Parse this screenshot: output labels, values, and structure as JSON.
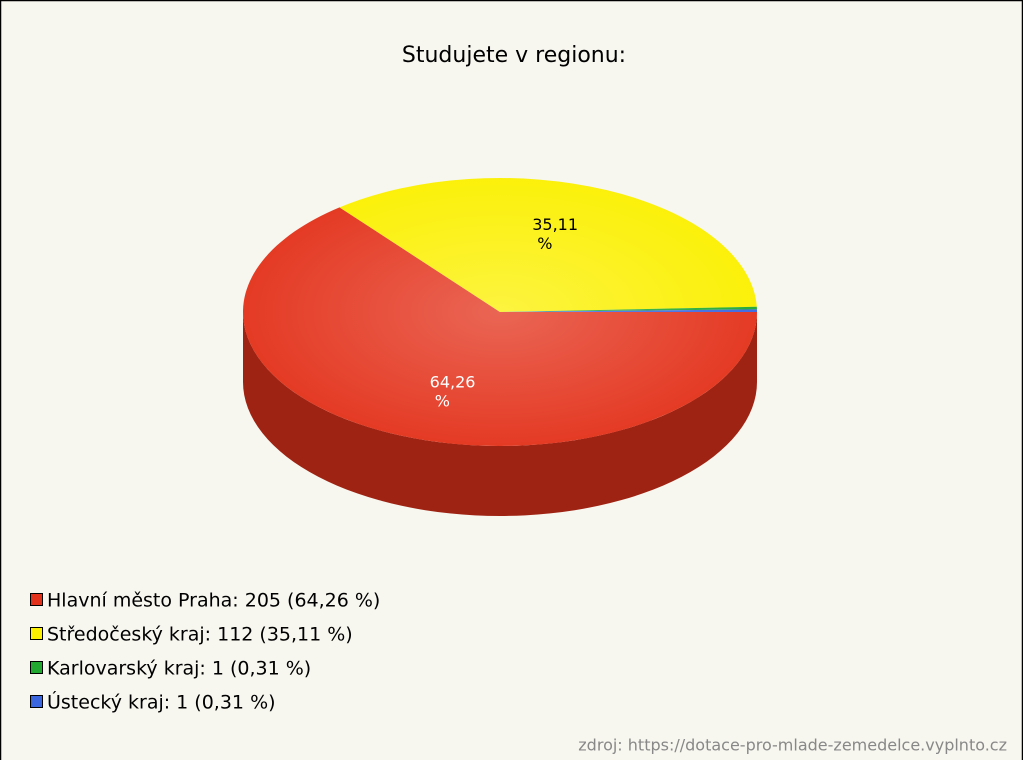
{
  "chart_data": {
    "type": "pie",
    "title": "Studujete v regionu:",
    "categories": [
      "Hlavní město Praha: 205 (64,26 %)",
      "Středočeský kraj: 112 (35,11 %)",
      "Karlovarský kraj: 1 (0,31 %)",
      "Ústecký kraj: 1 (0,31 %)"
    ],
    "values": [
      64.26,
      35.11,
      0.31,
      0.31
    ],
    "value_labels": [
      "64,26 %",
      "35,11 %",
      null,
      null
    ],
    "colors": [
      "#e3321b",
      "#fbf000",
      "#20a830",
      "#3a66e0"
    ],
    "source": "zdroj: https://dotace-pro-mlade-zemedelce.vyplnto.cz"
  }
}
